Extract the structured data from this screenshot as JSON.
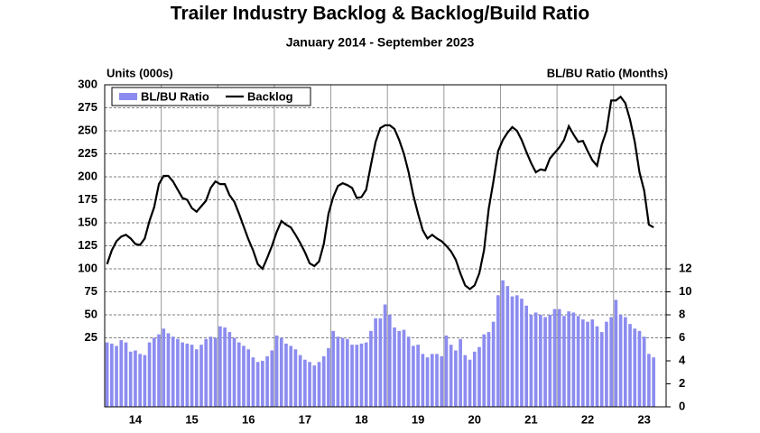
{
  "chart_data": {
    "type": "bar",
    "title": "Trailer Industry Backlog & Backlog/Build Ratio",
    "subtitle": "January 2014 - September 2023",
    "y_label": "Units (000s)",
    "y2_label": "BL/BU Ratio (Months)",
    "legend": "upper left",
    "grid": true,
    "categories": [
      null,
      null,
      null,
      null,
      null,
      null,
      "14",
      null,
      null,
      null,
      null,
      null,
      null,
      null,
      null,
      null,
      null,
      null,
      "15",
      null,
      null,
      null,
      null,
      null,
      null,
      null,
      null,
      null,
      null,
      null,
      "16",
      null,
      null,
      null,
      null,
      null,
      null,
      null,
      null,
      null,
      null,
      null,
      "17",
      null,
      null,
      null,
      null,
      null,
      null,
      null,
      null,
      null,
      null,
      null,
      "18",
      null,
      null,
      null,
      null,
      null,
      null,
      null,
      null,
      null,
      null,
      null,
      "19",
      null,
      null,
      null,
      null,
      null,
      null,
      null,
      null,
      null,
      null,
      null,
      "20",
      null,
      null,
      null,
      null,
      null,
      null,
      null,
      null,
      null,
      null,
      null,
      "21",
      null,
      null,
      null,
      null,
      null,
      null,
      null,
      null,
      null,
      null,
      null,
      "22",
      null,
      null,
      null,
      null,
      null,
      null,
      null,
      null,
      null,
      null,
      null,
      "23",
      null,
      null
    ],
    "ylim": [
      -50,
      300
    ],
    "yticks": [
      25,
      50,
      75,
      100,
      125,
      150,
      175,
      200,
      225,
      250,
      275,
      300
    ],
    "y2lim": [
      0,
      28
    ],
    "y2ticks": [
      0,
      2,
      4,
      6,
      8,
      10,
      12
    ],
    "series": [
      {
        "name": "BL/BU Ratio",
        "type": "bar",
        "axis": "y2",
        "color": "#8c8cf0",
        "values": [
          5.6,
          5.5,
          5.3,
          5.8,
          5.6,
          4.8,
          4.9,
          4.6,
          4.5,
          5.6,
          6.0,
          6.3,
          6.8,
          6.4,
          6.1,
          5.9,
          5.6,
          5.5,
          5.4,
          5.0,
          5.4,
          5.9,
          6.1,
          6.0,
          7.0,
          6.9,
          6.5,
          6.0,
          5.6,
          5.3,
          5.0,
          4.3,
          3.9,
          4.0,
          4.4,
          4.9,
          6.2,
          6.0,
          5.5,
          5.3,
          5.0,
          4.5,
          4.1,
          3.9,
          3.6,
          3.9,
          4.4,
          5.1,
          6.6,
          6.1,
          6.0,
          5.9,
          5.4,
          5.4,
          5.5,
          5.6,
          6.6,
          7.7,
          7.7,
          8.9,
          8.0,
          6.9,
          6.6,
          6.7,
          6.1,
          5.3,
          5.4,
          4.6,
          4.3,
          4.6,
          4.6,
          4.4,
          6.2,
          5.4,
          4.9,
          5.9,
          4.5,
          4.1,
          4.8,
          5.2,
          6.3,
          6.5,
          7.4,
          9.7,
          11.0,
          10.5,
          9.6,
          9.7,
          9.4,
          8.8,
          8.0,
          8.2,
          8.0,
          7.8,
          8.0,
          8.5,
          8.5,
          7.9,
          8.3,
          8.2,
          7.9,
          7.6,
          7.4,
          7.6,
          7.0,
          6.5,
          7.4,
          7.8,
          9.3,
          8.0,
          7.8,
          7.2,
          6.8,
          6.6,
          6.1,
          4.6,
          4.3
        ]
      },
      {
        "name": "Backlog",
        "type": "line",
        "color": "#000000",
        "values": [
          105,
          120,
          130,
          135,
          137,
          133,
          127,
          126,
          133,
          152,
          167,
          192,
          201,
          201,
          195,
          186,
          177,
          175,
          166,
          162,
          168,
          174,
          188,
          195,
          192,
          192,
          180,
          173,
          160,
          146,
          132,
          120,
          105,
          100,
          112,
          125,
          140,
          152,
          148,
          145,
          137,
          128,
          118,
          106,
          103,
          108,
          127,
          160,
          178,
          190,
          193,
          191,
          188,
          177,
          178,
          186,
          213,
          238,
          253,
          256,
          256,
          252,
          240,
          225,
          205,
          180,
          160,
          142,
          133,
          137,
          133,
          130,
          125,
          119,
          110,
          95,
          82,
          78,
          82,
          95,
          120,
          165,
          195,
          228,
          240,
          248,
          254,
          250,
          240,
          227,
          215,
          205,
          208,
          207,
          220,
          226,
          232,
          240,
          255,
          246,
          238,
          239,
          228,
          218,
          212,
          235,
          250,
          283,
          283,
          287,
          280,
          262,
          238,
          205,
          185,
          148,
          145
        ]
      }
    ]
  }
}
